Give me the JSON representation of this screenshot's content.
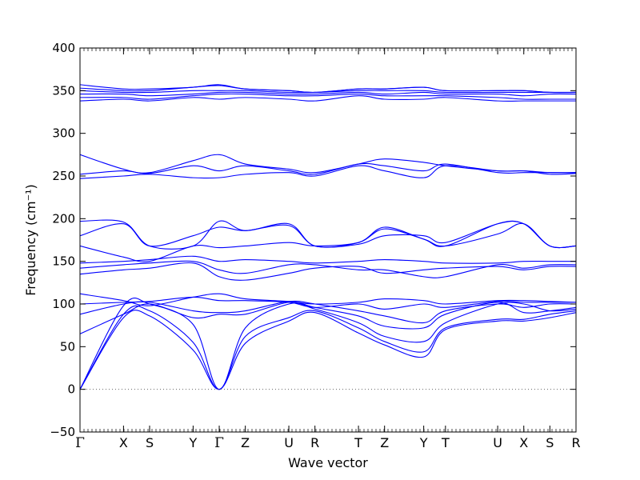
{
  "chart_data": {
    "type": "line",
    "xlabel": "Wave vector",
    "ylabel": "Frequency (cm⁻¹)",
    "ylim": [
      -50,
      400
    ],
    "yticks": [
      "400",
      "350",
      "300",
      "250",
      "200",
      "150",
      "100",
      "50",
      "0",
      "−50"
    ],
    "ytick_values": [
      400,
      350,
      300,
      250,
      200,
      150,
      100,
      50,
      0,
      -50
    ],
    "high_symmetry_labels": [
      "Γ",
      "X",
      "S",
      "Y",
      "Γ",
      "Z",
      "U",
      "R",
      "T",
      "Z",
      "Y",
      "T",
      "U",
      "X",
      "S",
      "R"
    ],
    "high_symmetry_positions": [
      0,
      1,
      1.6,
      2.6,
      3.2,
      3.8,
      4.8,
      5.4,
      6.4,
      7.0,
      7.9,
      8.4,
      9.6,
      10.2,
      10.8,
      11.4
    ],
    "x_range": [
      0,
      11.4
    ],
    "zero_line": true,
    "line_color": "#0000ff",
    "bands": [
      {
        "x": [
          0,
          1,
          1.6,
          2.6,
          3.2,
          3.8,
          4.8,
          5.4,
          6.4,
          7.0,
          7.9,
          8.4,
          9.6,
          10.2,
          10.8,
          11.4
        ],
        "y": [
          0,
          84,
          86,
          46,
          0,
          54,
          80,
          90,
          66,
          52,
          38,
          70,
          80,
          80,
          84,
          90
        ]
      },
      {
        "x": [
          0,
          1,
          1.6,
          2.6,
          3.2,
          3.8,
          4.8,
          5.4,
          6.4,
          7.0,
          7.9,
          8.4,
          9.6,
          10.2,
          10.8,
          11.4
        ],
        "y": [
          0,
          88,
          92,
          55,
          0,
          62,
          84,
          92,
          72,
          56,
          44,
          72,
          82,
          82,
          88,
          92
        ]
      },
      {
        "x": [
          0,
          1,
          1.6,
          2.6,
          3.2,
          3.8,
          4.8,
          5.4,
          6.4,
          7.0,
          7.9,
          8.4,
          9.6,
          10.2,
          10.8,
          11.4
        ],
        "y": [
          0,
          98,
          100,
          76,
          0,
          72,
          100,
          94,
          78,
          62,
          56,
          78,
          100,
          100,
          92,
          94
        ]
      },
      {
        "x": [
          0,
          1,
          1.6,
          2.6,
          3.2,
          3.8,
          4.8,
          5.4,
          6.4,
          7.0,
          7.9,
          8.4,
          9.6,
          10.2,
          10.8,
          11.4
        ],
        "y": [
          65,
          88,
          100,
          84,
          88,
          88,
          102,
          96,
          86,
          74,
          72,
          88,
          102,
          90,
          92,
          96
        ]
      },
      {
        "x": [
          0,
          1,
          1.6,
          2.6,
          3.2,
          3.8,
          4.8,
          5.4,
          6.4,
          7.0,
          7.9,
          8.4,
          9.6,
          10.2,
          10.8,
          11.4
        ],
        "y": [
          88,
          100,
          102,
          92,
          90,
          92,
          103,
          100,
          92,
          86,
          78,
          92,
          100,
          96,
          100,
          100
        ]
      },
      {
        "x": [
          0,
          1,
          1.6,
          2.6,
          3.2,
          3.8,
          4.8,
          5.4,
          6.4,
          7.0,
          7.9,
          8.4,
          9.6,
          10.2,
          10.8,
          11.4
        ],
        "y": [
          100,
          102,
          103,
          108,
          104,
          104,
          102,
          96,
          100,
          94,
          100,
          96,
          103,
          102,
          102,
          102
        ]
      },
      {
        "x": [
          0,
          1,
          1.6,
          2.6,
          3.2,
          3.8,
          4.8,
          5.4,
          6.4,
          7.0,
          7.9,
          8.4,
          9.6,
          10.2,
          10.8,
          11.4
        ],
        "y": [
          112,
          104,
          98,
          108,
          112,
          106,
          103,
          100,
          102,
          106,
          104,
          100,
          104,
          104,
          103,
          102
        ]
      },
      {
        "x": [
          0,
          1,
          1.6,
          2.6,
          3.2,
          3.8,
          4.8,
          5.4,
          6.4,
          7.0,
          7.9,
          8.4,
          9.6,
          10.2,
          10.8,
          11.4
        ],
        "y": [
          135,
          140,
          142,
          148,
          132,
          128,
          136,
          142,
          144,
          136,
          140,
          142,
          144,
          140,
          144,
          144
        ]
      },
      {
        "x": [
          0,
          1,
          1.6,
          2.6,
          3.2,
          3.8,
          4.8,
          5.4,
          6.4,
          7.0,
          7.9,
          8.4,
          9.6,
          10.2,
          10.8,
          11.4
        ],
        "y": [
          142,
          146,
          148,
          150,
          140,
          136,
          146,
          146,
          140,
          140,
          132,
          132,
          146,
          142,
          146,
          146
        ]
      },
      {
        "x": [
          0,
          1,
          1.6,
          2.6,
          3.2,
          3.8,
          4.8,
          5.4,
          6.4,
          7.0,
          7.9,
          8.4,
          9.6,
          10.2,
          10.8,
          11.4
        ],
        "y": [
          148,
          150,
          152,
          156,
          150,
          152,
          150,
          148,
          150,
          152,
          150,
          148,
          148,
          150,
          150,
          150
        ]
      },
      {
        "x": [
          0,
          1,
          1.6,
          2.6,
          3.2,
          3.8,
          4.8,
          5.4,
          6.4,
          7.0,
          7.9,
          8.4,
          9.6,
          10.2,
          10.8,
          11.4
        ],
        "y": [
          168,
          155,
          150,
          168,
          166,
          168,
          172,
          168,
          172,
          188,
          176,
          168,
          182,
          194,
          168,
          168
        ]
      },
      {
        "x": [
          0,
          1,
          1.6,
          2.6,
          3.2,
          3.8,
          4.8,
          5.4,
          6.4,
          7.0,
          7.9,
          8.4,
          9.6,
          10.2,
          10.8,
          11.4
        ],
        "y": [
          180,
          194,
          168,
          180,
          190,
          186,
          192,
          168,
          170,
          180,
          180,
          172,
          194,
          194,
          168,
          168
        ]
      },
      {
        "x": [
          0,
          1,
          1.6,
          2.6,
          3.2,
          3.8,
          4.8,
          5.4,
          6.4,
          7.0,
          7.9,
          8.4,
          9.6,
          10.2,
          10.8,
          11.4
        ],
        "y": [
          197,
          196,
          168,
          168,
          197,
          186,
          194,
          168,
          172,
          190,
          176,
          168,
          194,
          194,
          168,
          168
        ]
      },
      {
        "x": [
          0,
          1,
          1.6,
          2.6,
          3.2,
          3.8,
          4.8,
          5.4,
          6.4,
          7.0,
          7.9,
          8.4,
          9.6,
          10.2,
          10.8,
          11.4
        ],
        "y": [
          247,
          250,
          252,
          248,
          248,
          252,
          254,
          250,
          262,
          256,
          248,
          262,
          256,
          256,
          252,
          253
        ]
      },
      {
        "x": [
          0,
          1,
          1.6,
          2.6,
          3.2,
          3.8,
          4.8,
          5.4,
          6.4,
          7.0,
          7.9,
          8.4,
          9.6,
          10.2,
          10.8,
          11.4
        ],
        "y": [
          252,
          256,
          253,
          262,
          256,
          262,
          256,
          252,
          264,
          262,
          256,
          264,
          254,
          254,
          254,
          254
        ]
      },
      {
        "x": [
          0,
          1,
          1.6,
          2.6,
          3.2,
          3.8,
          4.8,
          5.4,
          6.4,
          7.0,
          7.9,
          8.4,
          9.6,
          10.2,
          10.8,
          11.4
        ],
        "y": [
          275,
          258,
          254,
          268,
          275,
          264,
          258,
          254,
          264,
          270,
          266,
          262,
          256,
          256,
          254,
          254
        ]
      },
      {
        "x": [
          0,
          1,
          1.6,
          2.6,
          3.2,
          3.8,
          4.8,
          5.4,
          6.4,
          7.0,
          7.9,
          8.4,
          9.6,
          10.2,
          10.8,
          11.4
        ],
        "y": [
          338,
          340,
          338,
          342,
          340,
          342,
          340,
          338,
          344,
          340,
          340,
          342,
          338,
          338,
          338,
          338
        ]
      },
      {
        "x": [
          0,
          1,
          1.6,
          2.6,
          3.2,
          3.8,
          4.8,
          5.4,
          6.4,
          7.0,
          7.9,
          8.4,
          9.6,
          10.2,
          10.8,
          11.4
        ],
        "y": [
          342,
          342,
          340,
          344,
          346,
          346,
          344,
          344,
          346,
          344,
          344,
          344,
          342,
          340,
          340,
          340
        ]
      },
      {
        "x": [
          0,
          1,
          1.6,
          2.6,
          3.2,
          3.8,
          4.8,
          5.4,
          6.4,
          7.0,
          7.9,
          8.4,
          9.6,
          10.2,
          10.8,
          11.4
        ],
        "y": [
          346,
          346,
          344,
          346,
          348,
          348,
          346,
          346,
          348,
          346,
          348,
          346,
          346,
          344,
          346,
          346
        ]
      },
      {
        "x": [
          0,
          1,
          1.6,
          2.6,
          3.2,
          3.8,
          4.8,
          5.4,
          6.4,
          7.0,
          7.9,
          8.4,
          9.6,
          10.2,
          10.8,
          11.4
        ],
        "y": [
          350,
          348,
          348,
          350,
          350,
          350,
          348,
          348,
          350,
          350,
          350,
          348,
          348,
          348,
          348,
          348
        ]
      },
      {
        "x": [
          0,
          1,
          1.6,
          2.6,
          3.2,
          3.8,
          4.8,
          5.4,
          6.4,
          7.0,
          7.9,
          8.4,
          9.6,
          10.2,
          10.8,
          11.4
        ],
        "y": [
          353,
          350,
          350,
          354,
          356,
          352,
          350,
          348,
          352,
          352,
          354,
          350,
          350,
          350,
          348,
          348
        ]
      },
      {
        "x": [
          0,
          1,
          1.6,
          2.6,
          3.2,
          3.8,
          4.8,
          5.4,
          6.4,
          7.0,
          7.9,
          8.4,
          9.6,
          10.2,
          10.8,
          11.4
        ],
        "y": [
          357,
          352,
          352,
          354,
          357,
          352,
          350,
          348,
          352,
          352,
          354,
          350,
          350,
          350,
          348,
          348
        ]
      }
    ]
  }
}
